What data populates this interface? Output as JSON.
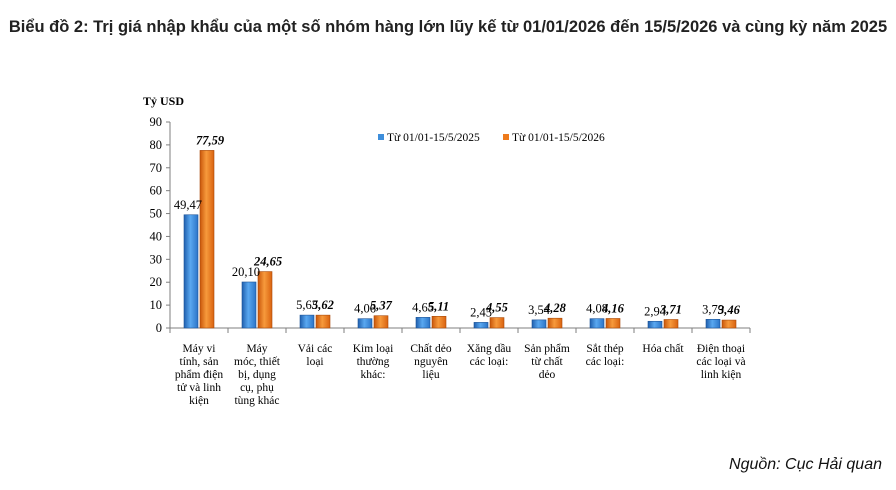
{
  "title": "Biểu đồ 2: Trị giá nhập khẩu của một số nhóm hàng lớn lũy kế từ 01/01/2026 đến 15/5/2026 và cùng kỳ năm 2025",
  "source": "Nguồn: Cục Hải quan",
  "chart_data": {
    "type": "bar",
    "ylabel": "Tỷ USD",
    "xlabel": "",
    "ylim": [
      0,
      90
    ],
    "yticks": [
      0,
      10,
      20,
      30,
      40,
      50,
      60,
      70,
      80,
      90
    ],
    "grid": false,
    "legend_position": "top-center",
    "categories": [
      "Máy vi tính, sản phẩm điện tử và linh kiện",
      "Máy móc, thiết bị, dụng cụ, phụ tùng khác",
      "Vải các loại",
      "Kim loại thường khác:",
      "Chất dẻo nguyên liệu",
      "Xăng dầu các loại:",
      "Sản phẩm từ chất dẻo",
      "Sắt thép các loại:",
      "Hóa chất",
      "Điện thoại các loại và linh kiện"
    ],
    "category_lines": [
      [
        "Máy vi",
        "tính, sản",
        "phẩm điện",
        "tử và linh",
        "kiện"
      ],
      [
        "Máy",
        "móc, thiết",
        "bị, dụng",
        "cụ, phụ",
        "tùng khác"
      ],
      [
        "Vải các",
        "loại"
      ],
      [
        "Kim loại",
        "thường",
        "khác:"
      ],
      [
        "Chất dẻo",
        "nguyên",
        "liệu"
      ],
      [
        "Xăng dầu",
        "các loại:"
      ],
      [
        "Sản phẩm",
        "từ chất",
        "dẻo"
      ],
      [
        "Sắt thép",
        "các loại:"
      ],
      [
        "Hóa chất"
      ],
      [
        "Điện thoại",
        "các loại và",
        "linh kiện"
      ]
    ],
    "series": [
      {
        "name": "Từ 01/01-15/5/2025",
        "color": "#3e8edb",
        "values": [
          49.47,
          20.1,
          5.63,
          4.06,
          4.65,
          2.45,
          3.54,
          4.08,
          2.94,
          3.79
        ],
        "labels": [
          "49,47",
          "20,10",
          "5,63",
          "4,06",
          "4,65",
          "2,45",
          "3,54",
          "4,08",
          "2,94",
          "3,79"
        ]
      },
      {
        "name": "Từ 01/01-15/5/2026",
        "color": "#ee7a1c",
        "values": [
          77.59,
          24.65,
          5.62,
          5.37,
          5.11,
          4.55,
          4.28,
          4.16,
          3.71,
          3.46
        ],
        "labels": [
          "77,59",
          "24,65",
          "5,62",
          "5,37",
          "5,11",
          "4,55",
          "4,28",
          "4,16",
          "3,71",
          "3,46"
        ]
      }
    ]
  }
}
